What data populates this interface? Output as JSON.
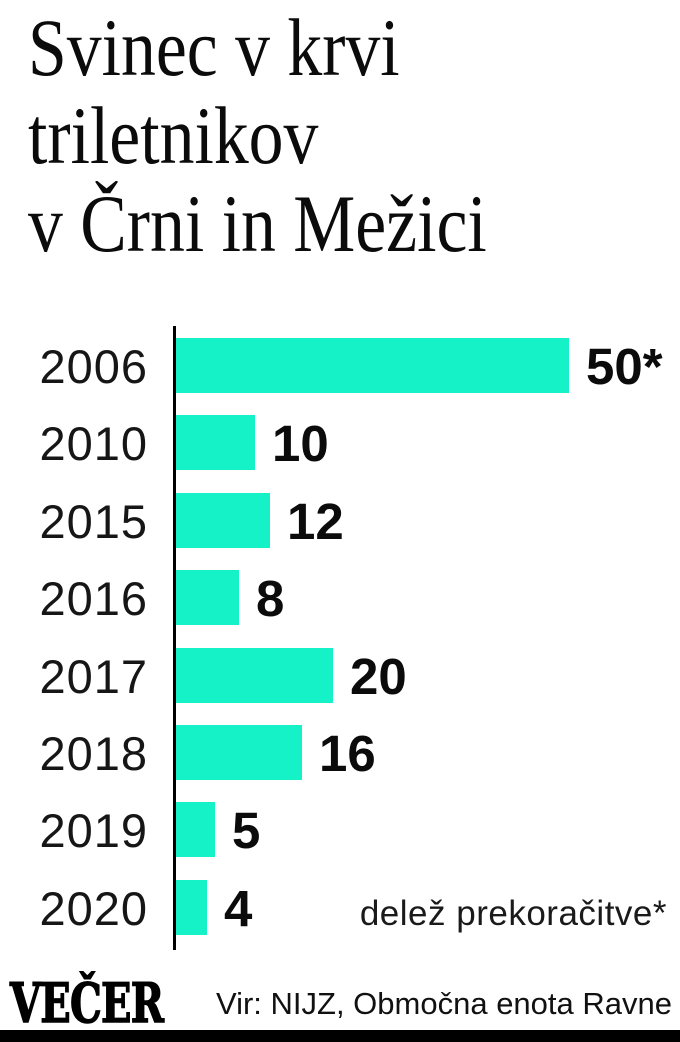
{
  "title": {
    "lines": [
      "Svinec v krvi",
      "triletnikov",
      "v Črni in Mežici"
    ]
  },
  "chart_data": {
    "type": "bar",
    "orientation": "horizontal",
    "title": "Svinec v krvi triletnikov v Črni in Mežici",
    "categories": [
      "2006",
      "2010",
      "2015",
      "2016",
      "2017",
      "2018",
      "2019",
      "2020"
    ],
    "values": [
      50,
      10,
      12,
      8,
      20,
      16,
      5,
      4
    ],
    "value_labels": [
      "50*",
      "10",
      "12",
      "8",
      "20",
      "16",
      "5",
      "4"
    ],
    "note": "delež prekoračitve*",
    "xlim": [
      0,
      50
    ],
    "grid": false,
    "legend": false,
    "axis": "single vertical baseline at zero"
  },
  "footer": {
    "logo_text": "VEČER",
    "source": "Vir: NIJZ, Območna enota Ravne"
  },
  "colors": {
    "bar": "#16F2C8",
    "axis": "#000000",
    "text": "#0B0B0B",
    "background": "#FFFFFF",
    "footer_rule": "#000000"
  }
}
